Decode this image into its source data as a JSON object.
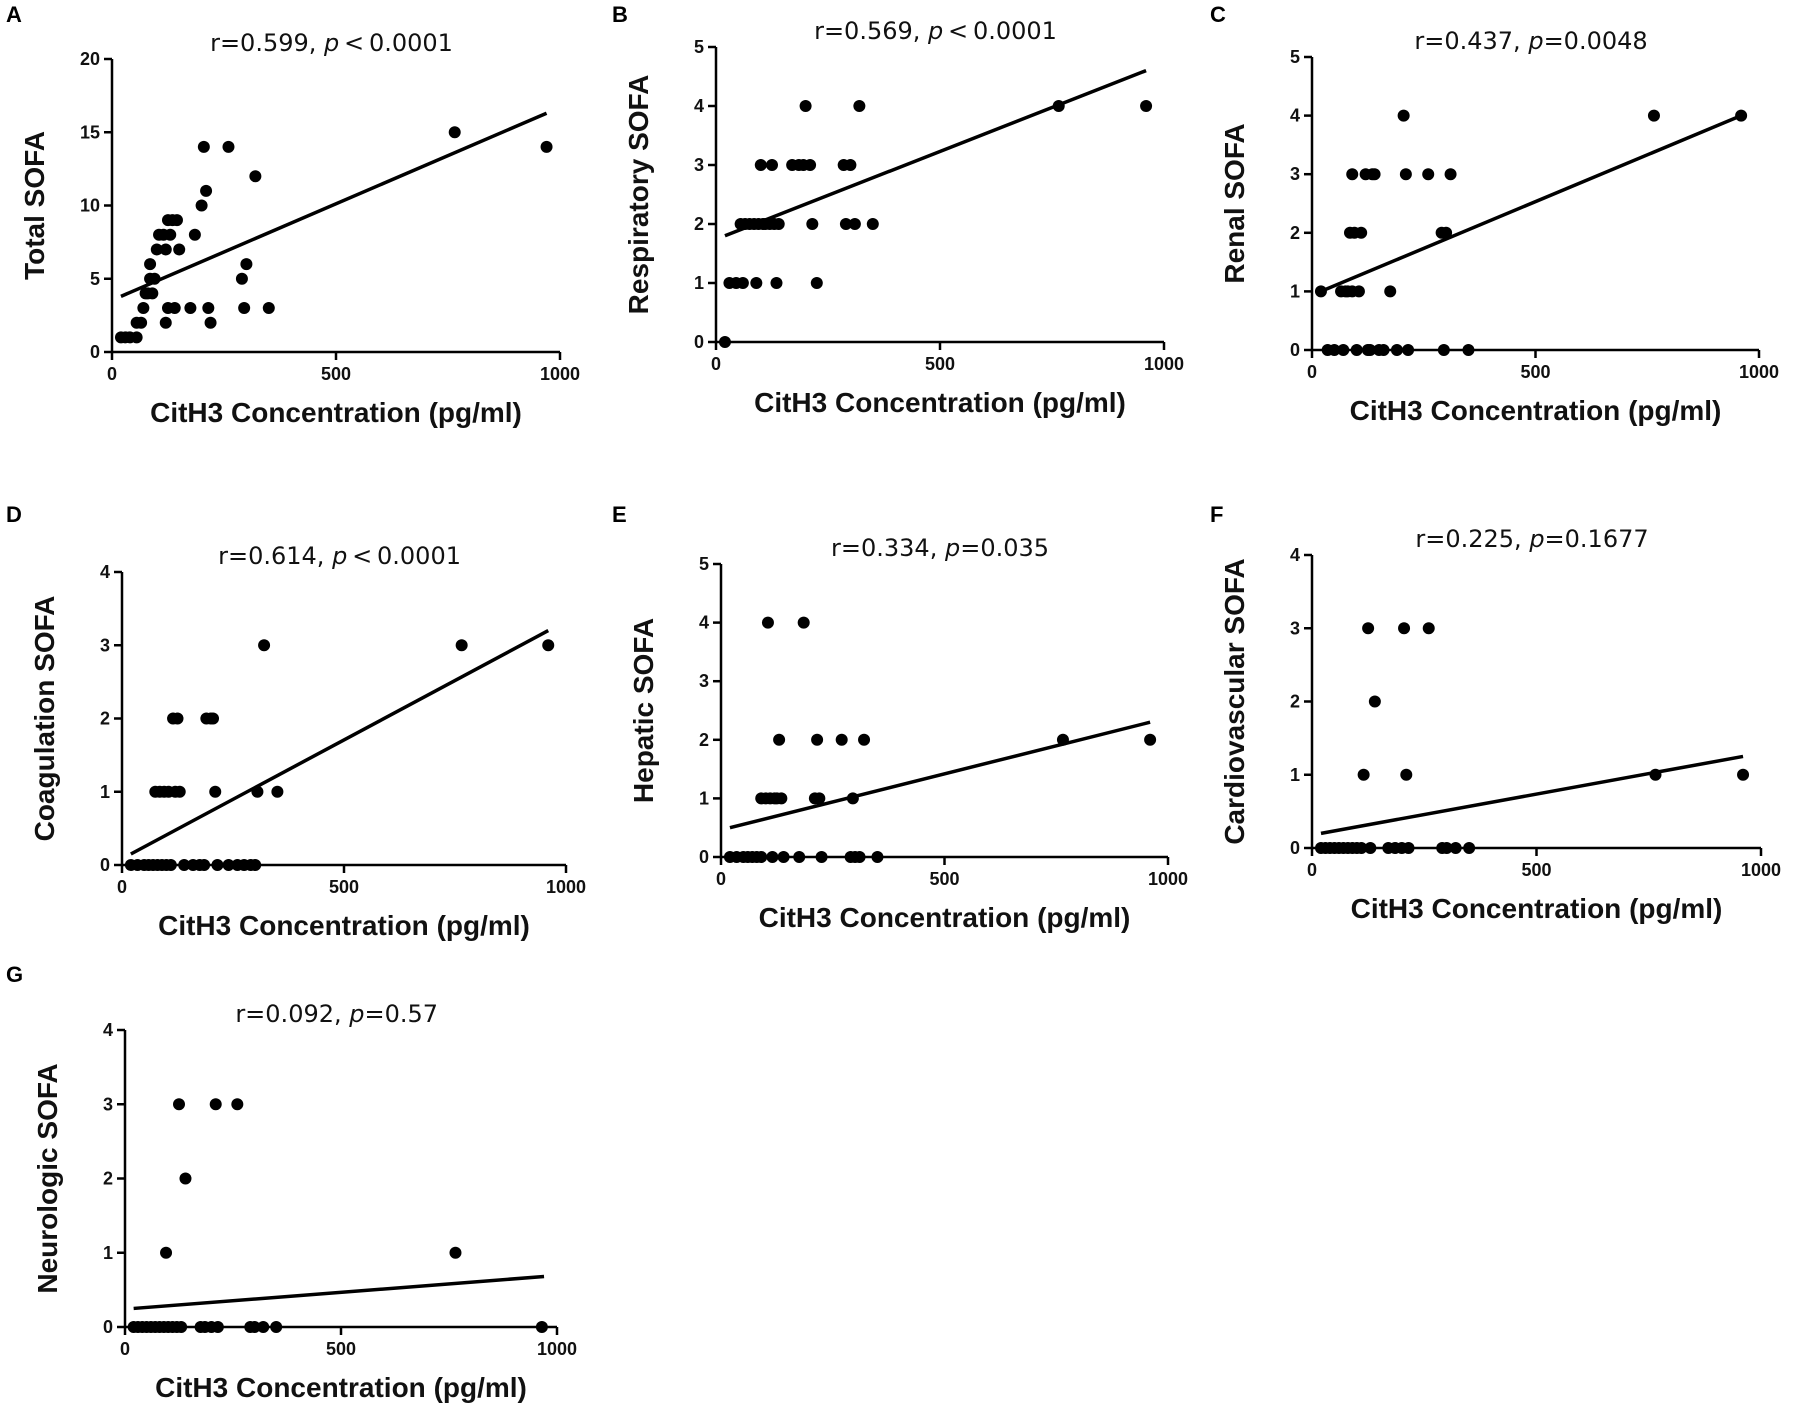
{
  "chart_data": [
    {
      "panel": "A",
      "type": "scatter",
      "stat_prefix": "r=0.599, ",
      "stat_p": "p",
      "stat_suffix": " < 0.0001",
      "ylabel": "Total SOFA",
      "xlabel": "CitH3 Concentration (pg/ml)",
      "xlim": [
        0,
        1000
      ],
      "ylim": [
        0,
        20
      ],
      "xticks": [
        0,
        500,
        1000
      ],
      "yticks": [
        0,
        5,
        10,
        15,
        20
      ],
      "fit_line": [
        [
          20,
          3.8
        ],
        [
          970,
          16.3
        ]
      ],
      "points": [
        [
          20,
          1
        ],
        [
          30,
          1
        ],
        [
          40,
          1
        ],
        [
          55,
          1
        ],
        [
          55,
          2
        ],
        [
          65,
          2
        ],
        [
          70,
          3
        ],
        [
          75,
          4
        ],
        [
          80,
          4
        ],
        [
          85,
          5
        ],
        [
          85,
          6
        ],
        [
          90,
          4
        ],
        [
          95,
          5
        ],
        [
          100,
          7
        ],
        [
          105,
          8
        ],
        [
          115,
          8
        ],
        [
          120,
          7
        ],
        [
          120,
          2
        ],
        [
          125,
          9
        ],
        [
          125,
          3
        ],
        [
          130,
          8
        ],
        [
          135,
          9
        ],
        [
          140,
          3
        ],
        [
          145,
          9
        ],
        [
          150,
          7
        ],
        [
          175,
          3
        ],
        [
          185,
          8
        ],
        [
          200,
          10
        ],
        [
          205,
          14
        ],
        [
          210,
          11
        ],
        [
          215,
          3
        ],
        [
          220,
          2
        ],
        [
          260,
          14
        ],
        [
          290,
          5
        ],
        [
          295,
          3
        ],
        [
          300,
          6
        ],
        [
          320,
          12
        ],
        [
          350,
          3
        ],
        [
          765,
          15
        ],
        [
          970,
          14
        ]
      ]
    },
    {
      "panel": "B",
      "type": "scatter",
      "stat_prefix": "r=0.569, ",
      "stat_p": "p",
      "stat_suffix": " < 0.0001",
      "ylabel": "Respiratory SOFA",
      "xlabel": "CitH3 Concentration (pg/ml)",
      "xlim": [
        0,
        1000
      ],
      "ylim": [
        0,
        5
      ],
      "xticks": [
        0,
        500,
        1000
      ],
      "yticks": [
        0,
        1,
        2,
        3,
        4,
        5
      ],
      "fit_line": [
        [
          20,
          1.8
        ],
        [
          960,
          4.6
        ]
      ],
      "points": [
        [
          20,
          0
        ],
        [
          30,
          1
        ],
        [
          45,
          1
        ],
        [
          60,
          1
        ],
        [
          55,
          2
        ],
        [
          65,
          2
        ],
        [
          75,
          2
        ],
        [
          85,
          2
        ],
        [
          90,
          1
        ],
        [
          95,
          2
        ],
        [
          100,
          3
        ],
        [
          105,
          2
        ],
        [
          110,
          2
        ],
        [
          120,
          2
        ],
        [
          125,
          3
        ],
        [
          130,
          2
        ],
        [
          135,
          1
        ],
        [
          140,
          2
        ],
        [
          170,
          3
        ],
        [
          185,
          3
        ],
        [
          195,
          3
        ],
        [
          200,
          4
        ],
        [
          210,
          3
        ],
        [
          215,
          2
        ],
        [
          225,
          1
        ],
        [
          285,
          3
        ],
        [
          300,
          3
        ],
        [
          290,
          2
        ],
        [
          310,
          2
        ],
        [
          320,
          4
        ],
        [
          350,
          2
        ],
        [
          765,
          4
        ],
        [
          960,
          4
        ]
      ]
    },
    {
      "panel": "C",
      "type": "scatter",
      "stat_prefix": "r=0.437, ",
      "stat_p": "p",
      "stat_suffix": "=0.0048",
      "ylabel": "Renal SOFA",
      "xlabel": "CitH3 Concentration (pg/ml)",
      "xlim": [
        0,
        1000
      ],
      "ylim": [
        0,
        5
      ],
      "xticks": [
        0,
        500,
        1000
      ],
      "yticks": [
        0,
        1,
        2,
        3,
        4,
        5
      ],
      "fit_line": [
        [
          20,
          1.0
        ],
        [
          960,
          4.0
        ]
      ],
      "points": [
        [
          20,
          1
        ],
        [
          35,
          0
        ],
        [
          50,
          0
        ],
        [
          65,
          1
        ],
        [
          70,
          0
        ],
        [
          75,
          1
        ],
        [
          80,
          1
        ],
        [
          85,
          2
        ],
        [
          90,
          1
        ],
        [
          90,
          3
        ],
        [
          95,
          2
        ],
        [
          100,
          0
        ],
        [
          105,
          1
        ],
        [
          110,
          2
        ],
        [
          120,
          3
        ],
        [
          125,
          0
        ],
        [
          130,
          0
        ],
        [
          135,
          3
        ],
        [
          140,
          3
        ],
        [
          150,
          0
        ],
        [
          160,
          0
        ],
        [
          175,
          1
        ],
        [
          190,
          0
        ],
        [
          205,
          4
        ],
        [
          210,
          3
        ],
        [
          215,
          0
        ],
        [
          260,
          3
        ],
        [
          290,
          2
        ],
        [
          295,
          0
        ],
        [
          300,
          2
        ],
        [
          310,
          3
        ],
        [
          350,
          0
        ],
        [
          765,
          4
        ],
        [
          960,
          4
        ]
      ]
    },
    {
      "panel": "D",
      "type": "scatter",
      "stat_prefix": "r=0.614, ",
      "stat_p": "p",
      "stat_suffix": " < 0.0001",
      "ylabel": "Coagulation SOFA",
      "xlabel": "CitH3 Concentration (pg/ml)",
      "xlim": [
        0,
        1000
      ],
      "ylim": [
        0,
        4
      ],
      "xticks": [
        0,
        500,
        1000
      ],
      "yticks": [
        0,
        1,
        2,
        3,
        4
      ],
      "fit_line": [
        [
          20,
          0.15
        ],
        [
          960,
          3.2
        ]
      ],
      "points": [
        [
          20,
          0
        ],
        [
          35,
          0
        ],
        [
          50,
          0
        ],
        [
          60,
          0
        ],
        [
          70,
          0
        ],
        [
          75,
          1
        ],
        [
          80,
          0
        ],
        [
          85,
          1
        ],
        [
          90,
          0
        ],
        [
          95,
          1
        ],
        [
          100,
          0
        ],
        [
          105,
          1
        ],
        [
          110,
          0
        ],
        [
          115,
          2
        ],
        [
          120,
          1
        ],
        [
          125,
          2
        ],
        [
          130,
          1
        ],
        [
          140,
          0
        ],
        [
          160,
          0
        ],
        [
          175,
          0
        ],
        [
          185,
          0
        ],
        [
          190,
          2
        ],
        [
          200,
          2
        ],
        [
          205,
          2
        ],
        [
          210,
          1
        ],
        [
          215,
          0
        ],
        [
          240,
          0
        ],
        [
          260,
          0
        ],
        [
          275,
          0
        ],
        [
          290,
          0
        ],
        [
          300,
          0
        ],
        [
          305,
          1
        ],
        [
          320,
          3
        ],
        [
          350,
          1
        ],
        [
          765,
          3
        ],
        [
          960,
          3
        ]
      ]
    },
    {
      "panel": "E",
      "type": "scatter",
      "stat_prefix": "r=0.334, ",
      "stat_p": "p",
      "stat_suffix": "=0.035",
      "ylabel": "Hepatic SOFA",
      "xlabel": "CitH3 Concentration (pg/ml)",
      "xlim": [
        0,
        1000
      ],
      "ylim": [
        0,
        5
      ],
      "xticks": [
        0,
        500,
        1000
      ],
      "yticks": [
        0,
        1,
        2,
        3,
        4,
        5
      ],
      "fit_line": [
        [
          20,
          0.5
        ],
        [
          960,
          2.3
        ]
      ],
      "points": [
        [
          20,
          0
        ],
        [
          35,
          0
        ],
        [
          50,
          0
        ],
        [
          60,
          0
        ],
        [
          70,
          0
        ],
        [
          80,
          0
        ],
        [
          90,
          0
        ],
        [
          90,
          1
        ],
        [
          100,
          1
        ],
        [
          105,
          4
        ],
        [
          110,
          1
        ],
        [
          115,
          0
        ],
        [
          120,
          1
        ],
        [
          125,
          1
        ],
        [
          130,
          2
        ],
        [
          135,
          1
        ],
        [
          140,
          0
        ],
        [
          175,
          0
        ],
        [
          185,
          4
        ],
        [
          210,
          1
        ],
        [
          215,
          2
        ],
        [
          220,
          1
        ],
        [
          225,
          0
        ],
        [
          270,
          2
        ],
        [
          290,
          0
        ],
        [
          295,
          1
        ],
        [
          300,
          0
        ],
        [
          310,
          0
        ],
        [
          320,
          2
        ],
        [
          350,
          0
        ],
        [
          765,
          2
        ],
        [
          960,
          2
        ]
      ]
    },
    {
      "panel": "F",
      "type": "scatter",
      "stat_prefix": "r=0.225, ",
      "stat_p": "p",
      "stat_suffix": "=0.1677",
      "ylabel": "Cardiovascular SOFA",
      "xlabel": "CitH3 Concentration (pg/ml)",
      "xlim": [
        0,
        1000
      ],
      "ylim": [
        0,
        4
      ],
      "xticks": [
        0,
        500,
        1000
      ],
      "yticks": [
        0,
        1,
        2,
        3,
        4
      ],
      "fit_line": [
        [
          20,
          0.2
        ],
        [
          960,
          1.25
        ]
      ],
      "points": [
        [
          20,
          0
        ],
        [
          30,
          0
        ],
        [
          40,
          0
        ],
        [
          50,
          0
        ],
        [
          60,
          0
        ],
        [
          70,
          0
        ],
        [
          80,
          0
        ],
        [
          90,
          0
        ],
        [
          100,
          0
        ],
        [
          110,
          0
        ],
        [
          115,
          1
        ],
        [
          125,
          3
        ],
        [
          130,
          0
        ],
        [
          140,
          2
        ],
        [
          170,
          0
        ],
        [
          185,
          0
        ],
        [
          200,
          0
        ],
        [
          205,
          3
        ],
        [
          210,
          1
        ],
        [
          215,
          0
        ],
        [
          260,
          3
        ],
        [
          290,
          0
        ],
        [
          300,
          0
        ],
        [
          320,
          0
        ],
        [
          350,
          0
        ],
        [
          765,
          1
        ],
        [
          960,
          1
        ]
      ]
    },
    {
      "panel": "G",
      "type": "scatter",
      "stat_prefix": "r=0.092, ",
      "stat_p": "p",
      "stat_suffix": "=0.57",
      "ylabel": "Neurologic SOFA",
      "xlabel": "CitH3 Concentration (pg/ml)",
      "xlim": [
        0,
        1000
      ],
      "ylim": [
        0,
        4
      ],
      "xticks": [
        0,
        500,
        1000
      ],
      "yticks": [
        0,
        1,
        2,
        3,
        4
      ],
      "fit_line": [
        [
          20,
          0.25
        ],
        [
          970,
          0.68
        ]
      ],
      "points": [
        [
          20,
          0
        ],
        [
          30,
          0
        ],
        [
          40,
          0
        ],
        [
          50,
          0
        ],
        [
          60,
          0
        ],
        [
          70,
          0
        ],
        [
          80,
          0
        ],
        [
          90,
          0
        ],
        [
          95,
          1
        ],
        [
          100,
          0
        ],
        [
          110,
          0
        ],
        [
          120,
          0
        ],
        [
          125,
          3
        ],
        [
          130,
          0
        ],
        [
          140,
          2
        ],
        [
          175,
          0
        ],
        [
          185,
          0
        ],
        [
          200,
          0
        ],
        [
          210,
          3
        ],
        [
          215,
          0
        ],
        [
          260,
          3
        ],
        [
          290,
          0
        ],
        [
          300,
          0
        ],
        [
          320,
          0
        ],
        [
          350,
          0
        ],
        [
          765,
          1
        ],
        [
          965,
          0
        ]
      ]
    }
  ]
}
